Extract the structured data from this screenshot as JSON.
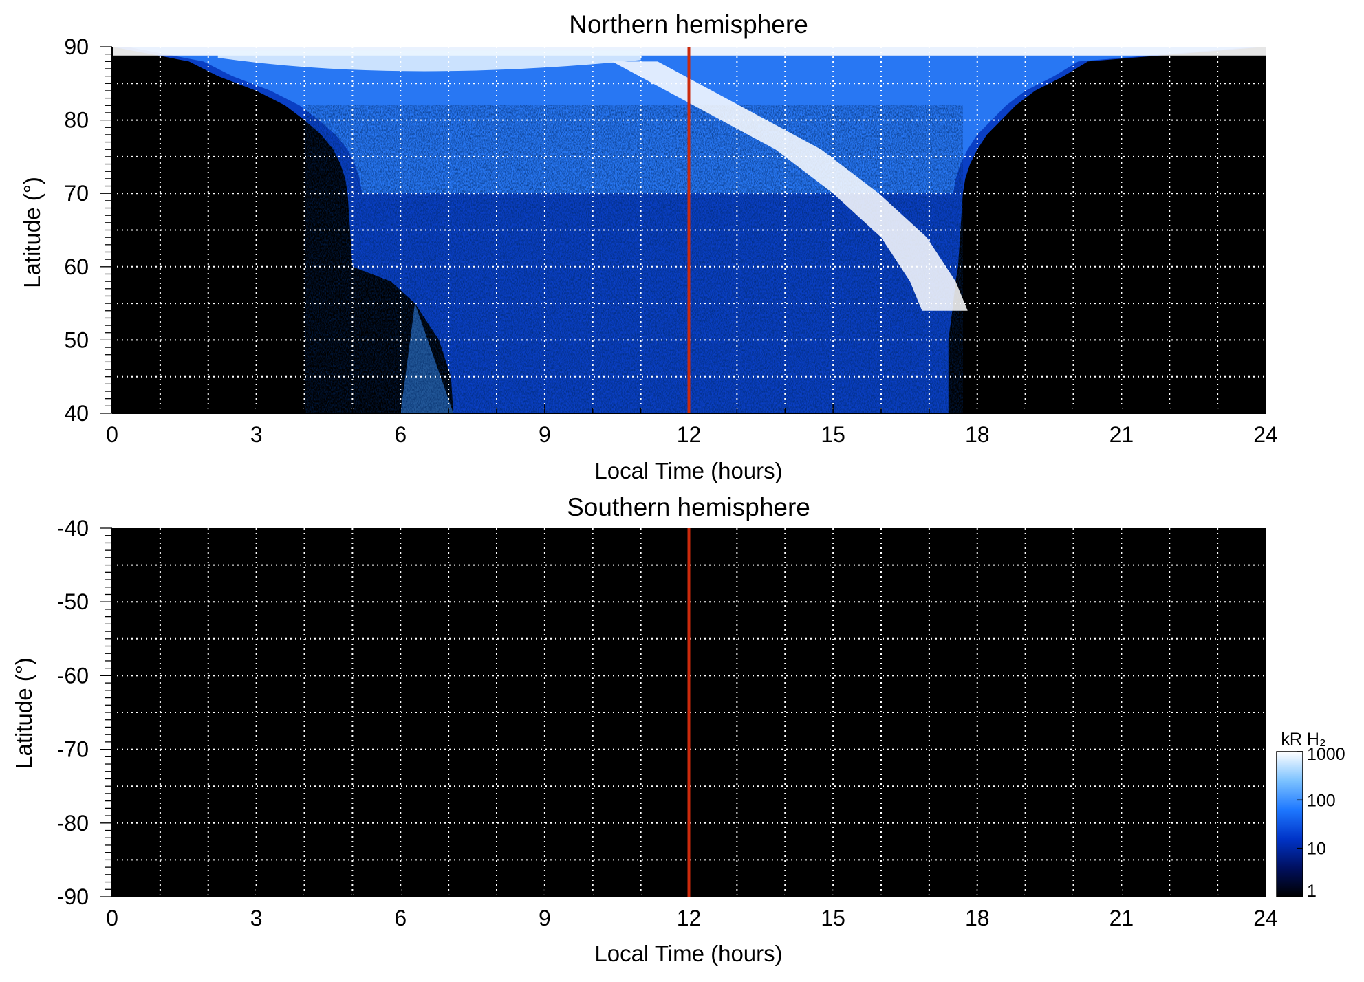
{
  "chart_data": [
    {
      "type": "heatmap",
      "title": "Northern hemisphere",
      "xlabel": "Local Time (hours)",
      "ylabel": "Latitude (°)",
      "xlim": [
        0,
        24
      ],
      "ylim": [
        40,
        90
      ],
      "x_ticks": [
        "0",
        "3",
        "6",
        "9",
        "12",
        "15",
        "18",
        "21",
        "24"
      ],
      "x_tick_values": [
        0,
        3,
        6,
        9,
        12,
        15,
        18,
        21,
        24
      ],
      "y_ticks": [
        "40",
        "50",
        "60",
        "70",
        "80",
        "90"
      ],
      "y_tick_values": [
        40,
        50,
        60,
        70,
        80,
        90
      ],
      "grid": true,
      "vline_x": 12,
      "vline_color": "#cc2a0c",
      "coverage": [
        {
          "lat": 90,
          "lt_start": 0.0,
          "lt_end": 24.0
        },
        {
          "lat": 88,
          "lt_start": 1.6,
          "lt_end": 20.3
        },
        {
          "lat": 86,
          "lt_start": 2.2,
          "lt_end": 19.8
        },
        {
          "lat": 84,
          "lt_start": 3.0,
          "lt_end": 19.2
        },
        {
          "lat": 82,
          "lt_start": 3.6,
          "lt_end": 18.8
        },
        {
          "lat": 80,
          "lt_start": 4.0,
          "lt_end": 18.5
        },
        {
          "lat": 78,
          "lt_start": 4.35,
          "lt_end": 18.2
        },
        {
          "lat": 76,
          "lt_start": 4.6,
          "lt_end": 18.0
        },
        {
          "lat": 74,
          "lt_start": 4.75,
          "lt_end": 17.85
        },
        {
          "lat": 72,
          "lt_start": 4.85,
          "lt_end": 17.75
        },
        {
          "lat": 70,
          "lt_start": 4.9,
          "lt_end": 17.7
        },
        {
          "lat": 65,
          "lt_start": 4.95,
          "lt_end": 17.65
        },
        {
          "lat": 60,
          "lt_start": 5.0,
          "lt_end": 17.6
        },
        {
          "lat": 58,
          "lt_start": 5.8,
          "lt_end": 17.55
        },
        {
          "lat": 55,
          "lt_start": 6.3,
          "lt_end": 17.5
        },
        {
          "lat": 50,
          "lt_start": 6.8,
          "lt_end": 17.4
        },
        {
          "lat": 45,
          "lt_start": 7.05,
          "lt_end": 17.4
        },
        {
          "lat": 40,
          "lt_start": 7.1,
          "lt_end": 17.4
        }
      ],
      "bright_band": [
        {
          "lat": 88,
          "lt": 11.0
        },
        {
          "lat": 82,
          "lt": 12.7
        },
        {
          "lat": 76,
          "lt": 14.4
        },
        {
          "lat": 70,
          "lt": 15.6
        },
        {
          "lat": 64,
          "lt": 16.6
        },
        {
          "lat": 58,
          "lt": 17.2
        },
        {
          "lat": 54,
          "lt": 17.45
        }
      ]
    },
    {
      "type": "heatmap",
      "title": "Southern hemisphere",
      "xlabel": "Local Time (hours)",
      "ylabel": "Latitude (°)",
      "xlim": [
        0,
        24
      ],
      "ylim": [
        -90,
        -40
      ],
      "x_ticks": [
        "0",
        "3",
        "6",
        "9",
        "12",
        "15",
        "18",
        "21",
        "24"
      ],
      "x_tick_values": [
        0,
        3,
        6,
        9,
        12,
        15,
        18,
        21,
        24
      ],
      "y_ticks": [
        "-40",
        "-50",
        "-60",
        "-70",
        "-80",
        "-90"
      ],
      "y_tick_values": [
        -40,
        -50,
        -60,
        -70,
        -80,
        -90
      ],
      "grid": true,
      "vline_x": 12,
      "vline_color": "#cc2a0c",
      "coverage": []
    }
  ],
  "colorbar": {
    "label": "kR H₂",
    "ticks": [
      "1000",
      "100",
      "10",
      "1"
    ],
    "tick_values": [
      1000,
      100,
      10,
      1
    ],
    "scale": "log",
    "range": [
      1,
      1000
    ],
    "colors": [
      "#000000",
      "#001060",
      "#0034c8",
      "#1e78ff",
      "#7cc2ff",
      "#ffffff"
    ]
  }
}
